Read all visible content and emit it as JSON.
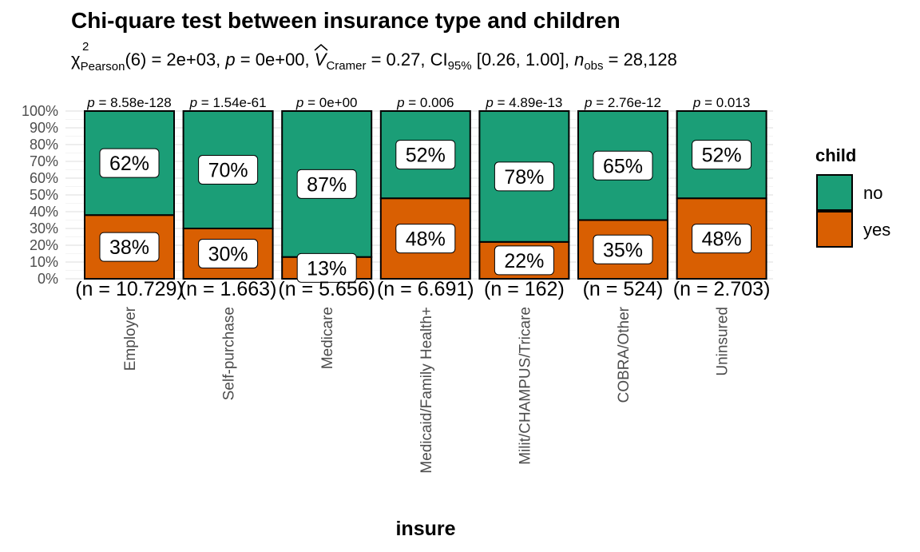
{
  "chart_data": {
    "type": "bar",
    "stacked": "percent",
    "title": "Chi-quare test between insurance type and children",
    "subtitle": {
      "chi_symbol": "χ",
      "chi_sup": "2",
      "chi_sub": "Pearson",
      "chi_rest": "(6) = 2e+03, ",
      "p_symbol": "p",
      "p_rest": " = 0e+00, ",
      "v_symbol": "V",
      "v_sub": "Cramer",
      "v_rest": " = 0.27, CI",
      "ci_sub": "95%",
      "ci_rest": " [0.26, 1.00], ",
      "n_symbol": "n",
      "n_sub": "obs",
      "n_rest": " = 28,128"
    },
    "xlabel": "insure",
    "ylabel": "",
    "ylim": [
      0,
      100
    ],
    "y_ticks": [
      "0%",
      "10%",
      "20%",
      "30%",
      "40%",
      "50%",
      "60%",
      "70%",
      "80%",
      "90%",
      "100%"
    ],
    "grid": true,
    "legend": {
      "title": "child",
      "position": "right"
    },
    "categories": [
      "Employer",
      "Self-purchase",
      "Medicare",
      "Medicaid/Family Health+",
      "Milit/CHAMPUS/Tricare",
      "COBRA/Other",
      "Uninsured"
    ],
    "series": [
      {
        "name": "no",
        "color": "#1B9E77",
        "values": [
          62,
          70,
          87,
          52,
          78,
          65,
          52
        ],
        "labels": [
          "62%",
          "70%",
          "87%",
          "52%",
          "78%",
          "65%",
          "52%"
        ]
      },
      {
        "name": "yes",
        "color": "#D95F02",
        "values": [
          38,
          30,
          13,
          48,
          22,
          35,
          48
        ],
        "labels": [
          "38%",
          "30%",
          "13%",
          "48%",
          "22%",
          "35%",
          "48%"
        ]
      }
    ],
    "p_labels": [
      "p = 8.58e-128",
      "p = 1.54e-61",
      "p = 0e+00",
      "p = 0.006",
      "p = 4.89e-13",
      "p = 2.76e-12",
      "p = 0.013"
    ],
    "n_labels": [
      "(n = 10.729)",
      "(n = 1.663)",
      "(n = 5.656)",
      "(n = 6.691)",
      "(n = 162)",
      "(n = 524)",
      "(n = 2.703)"
    ]
  }
}
